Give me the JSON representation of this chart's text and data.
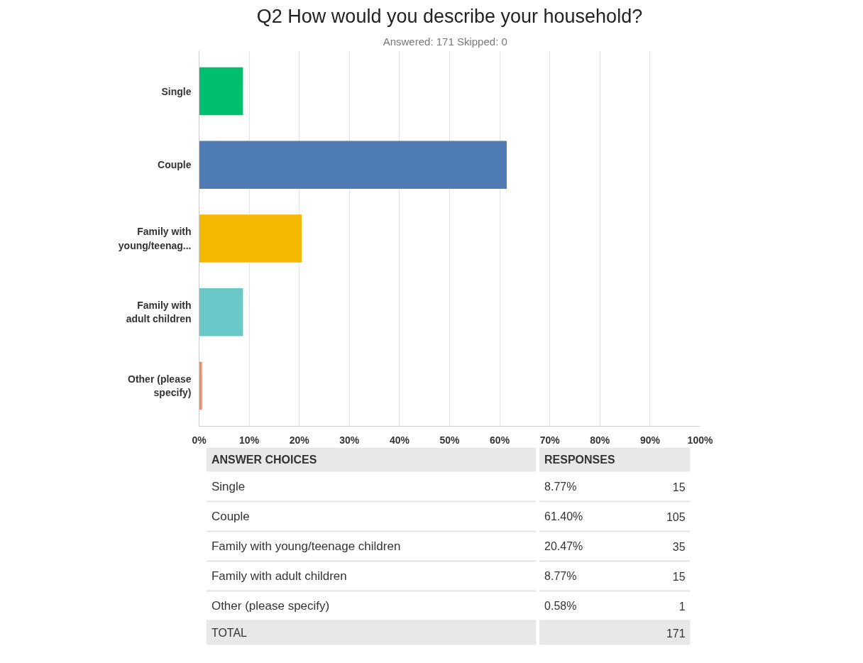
{
  "chart_data": [
    {
      "type": "bar",
      "orientation": "horizontal",
      "title": "Q2 How would you describe your household?",
      "subtitle": "Answered: 171    Skipped: 0",
      "categories": [
        "Single",
        "Couple",
        "Family with young/teenag...",
        "Family with adult children",
        "Other (please specify)"
      ],
      "values": [
        8.77,
        61.4,
        20.47,
        8.77,
        0.58
      ],
      "colors": [
        "#00bf6f",
        "#507cb6",
        "#f5b800",
        "#6bc8c8",
        "#f3886a"
      ],
      "xlim": [
        0,
        100
      ],
      "xticks": [
        {
          "value": 0,
          "label": "0%"
        },
        {
          "value": 10,
          "label": "10%"
        },
        {
          "value": 20,
          "label": "20%"
        },
        {
          "value": 30,
          "label": "30%"
        },
        {
          "value": 40,
          "label": "40%"
        },
        {
          "value": 50,
          "label": "50%"
        },
        {
          "value": 60,
          "label": "60%"
        },
        {
          "value": 70,
          "label": "70%"
        },
        {
          "value": 80,
          "label": "80%"
        },
        {
          "value": 90,
          "label": "90%"
        },
        {
          "value": 100,
          "label": "100%"
        }
      ],
      "grid": "x"
    },
    {
      "type": "other",
      "categories": [
        "Single",
        "Couple",
        "Family with young/teenage children",
        "Family with adult children",
        "Other (please specify)"
      ],
      "values": [
        15,
        105,
        35,
        15,
        1
      ],
      "data_labels": true,
      "annotations": [
        "ANSWER CHOICES",
        "RESPONSES",
        "8.77%",
        "61.40%",
        "20.47%",
        "8.77%",
        "0.58%",
        "TOTAL",
        "171"
      ]
    }
  ]
}
